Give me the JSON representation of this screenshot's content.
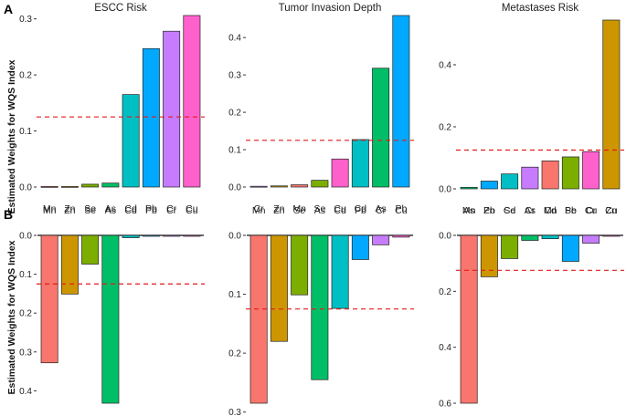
{
  "figure": {
    "ylabel": "Estimated Weights for WQS Index",
    "panel_labels": [
      "A",
      "B"
    ],
    "colors": {
      "Mn": "#F8766D",
      "Zn": "#CD9600",
      "Se": "#7CAE00",
      "As": "#00BE67",
      "Cd": "#00BFC4",
      "Pb": "#00A9FF",
      "Cr": "#C77CFF",
      "Cu": "#FF61CC",
      "threshold": "#E41A1C"
    }
  },
  "chart_data": [
    {
      "type": "bar",
      "panel": "A",
      "title": "ESCC Risk",
      "direction": "up",
      "categories": [
        "Mn",
        "Zn",
        "Se",
        "As",
        "Cd",
        "Pb",
        "Cr",
        "Cu"
      ],
      "values": [
        0.001,
        0.001,
        0.005,
        0.007,
        0.165,
        0.247,
        0.278,
        0.306
      ],
      "yticks": [
        0.0,
        0.1,
        0.2,
        0.3
      ],
      "yticklabels": [
        "0.0",
        "0.1",
        "0.2",
        "0.3"
      ],
      "ylim": [
        0,
        0.306
      ],
      "threshold": 0.125
    },
    {
      "type": "bar",
      "panel": "A",
      "title": "Tumor Invasion Depth",
      "direction": "up",
      "categories": [
        "Cr",
        "Zn",
        "Mn",
        "Se",
        "Cu",
        "Cd",
        "As",
        "Pb"
      ],
      "values": [
        0.002,
        0.003,
        0.006,
        0.018,
        0.075,
        0.127,
        0.318,
        0.459
      ],
      "yticks": [
        0.0,
        0.1,
        0.2,
        0.3,
        0.4
      ],
      "yticklabels": [
        "0.0",
        "0.1",
        "0.2",
        "0.3",
        "0.4"
      ],
      "ylim": [
        0,
        0.459
      ],
      "threshold": 0.125
    },
    {
      "type": "bar",
      "panel": "A",
      "title": "Metastases Risk",
      "direction": "up",
      "categories": [
        "As",
        "Pb",
        "Cd",
        "Cr",
        "Mn",
        "Se",
        "Cu",
        "Zn"
      ],
      "values": [
        0.005,
        0.025,
        0.048,
        0.07,
        0.09,
        0.103,
        0.12,
        0.544
      ],
      "yticks": [
        0.0,
        0.2,
        0.4
      ],
      "yticklabels": [
        "0.0",
        "0.2",
        "0.4"
      ],
      "ylim": [
        0,
        0.544
      ],
      "threshold": 0.125
    },
    {
      "type": "bar",
      "panel": "B",
      "title": "",
      "direction": "down",
      "categories": [
        "Mn",
        "Zn",
        "Se",
        "As",
        "Cd",
        "Pb",
        "Cr",
        "Cu"
      ],
      "values": [
        0.328,
        0.151,
        0.074,
        0.432,
        0.006,
        0.002,
        0.002,
        0.002
      ],
      "yticks": [
        0.0,
        0.1,
        0.2,
        0.3,
        0.4
      ],
      "yticklabels": [
        "0.0",
        "0.1",
        "0.2",
        "0.3",
        "0.4"
      ],
      "ylim": [
        0,
        0.432
      ],
      "threshold": 0.125
    },
    {
      "type": "bar",
      "panel": "B",
      "title": "",
      "direction": "down",
      "categories": [
        "Mn",
        "Zn",
        "Se",
        "As",
        "Cd",
        "Pb",
        "Cr",
        "Cu"
      ],
      "values": [
        0.285,
        0.18,
        0.101,
        0.245,
        0.124,
        0.041,
        0.016,
        0.003
      ],
      "yticks": [
        0.0,
        0.1,
        0.2,
        0.3
      ],
      "yticklabels": [
        "0.0",
        "0.1",
        "0.2",
        "0.3"
      ],
      "ylim": [
        0,
        0.285
      ],
      "threshold": 0.125
    },
    {
      "type": "bar",
      "panel": "B",
      "title": "",
      "direction": "down",
      "categories": [
        "Mn",
        "Zn",
        "Se",
        "As",
        "Cd",
        "Pb",
        "Cr",
        "Cu"
      ],
      "values": [
        0.6,
        0.148,
        0.083,
        0.018,
        0.012,
        0.093,
        0.028,
        0.002
      ],
      "yticks": [
        0.0,
        0.2,
        0.4,
        0.6
      ],
      "yticklabels": [
        "0.0",
        "0.2",
        "0.4",
        "0.6"
      ],
      "ylim": [
        0,
        0.6
      ],
      "threshold": 0.125
    }
  ]
}
